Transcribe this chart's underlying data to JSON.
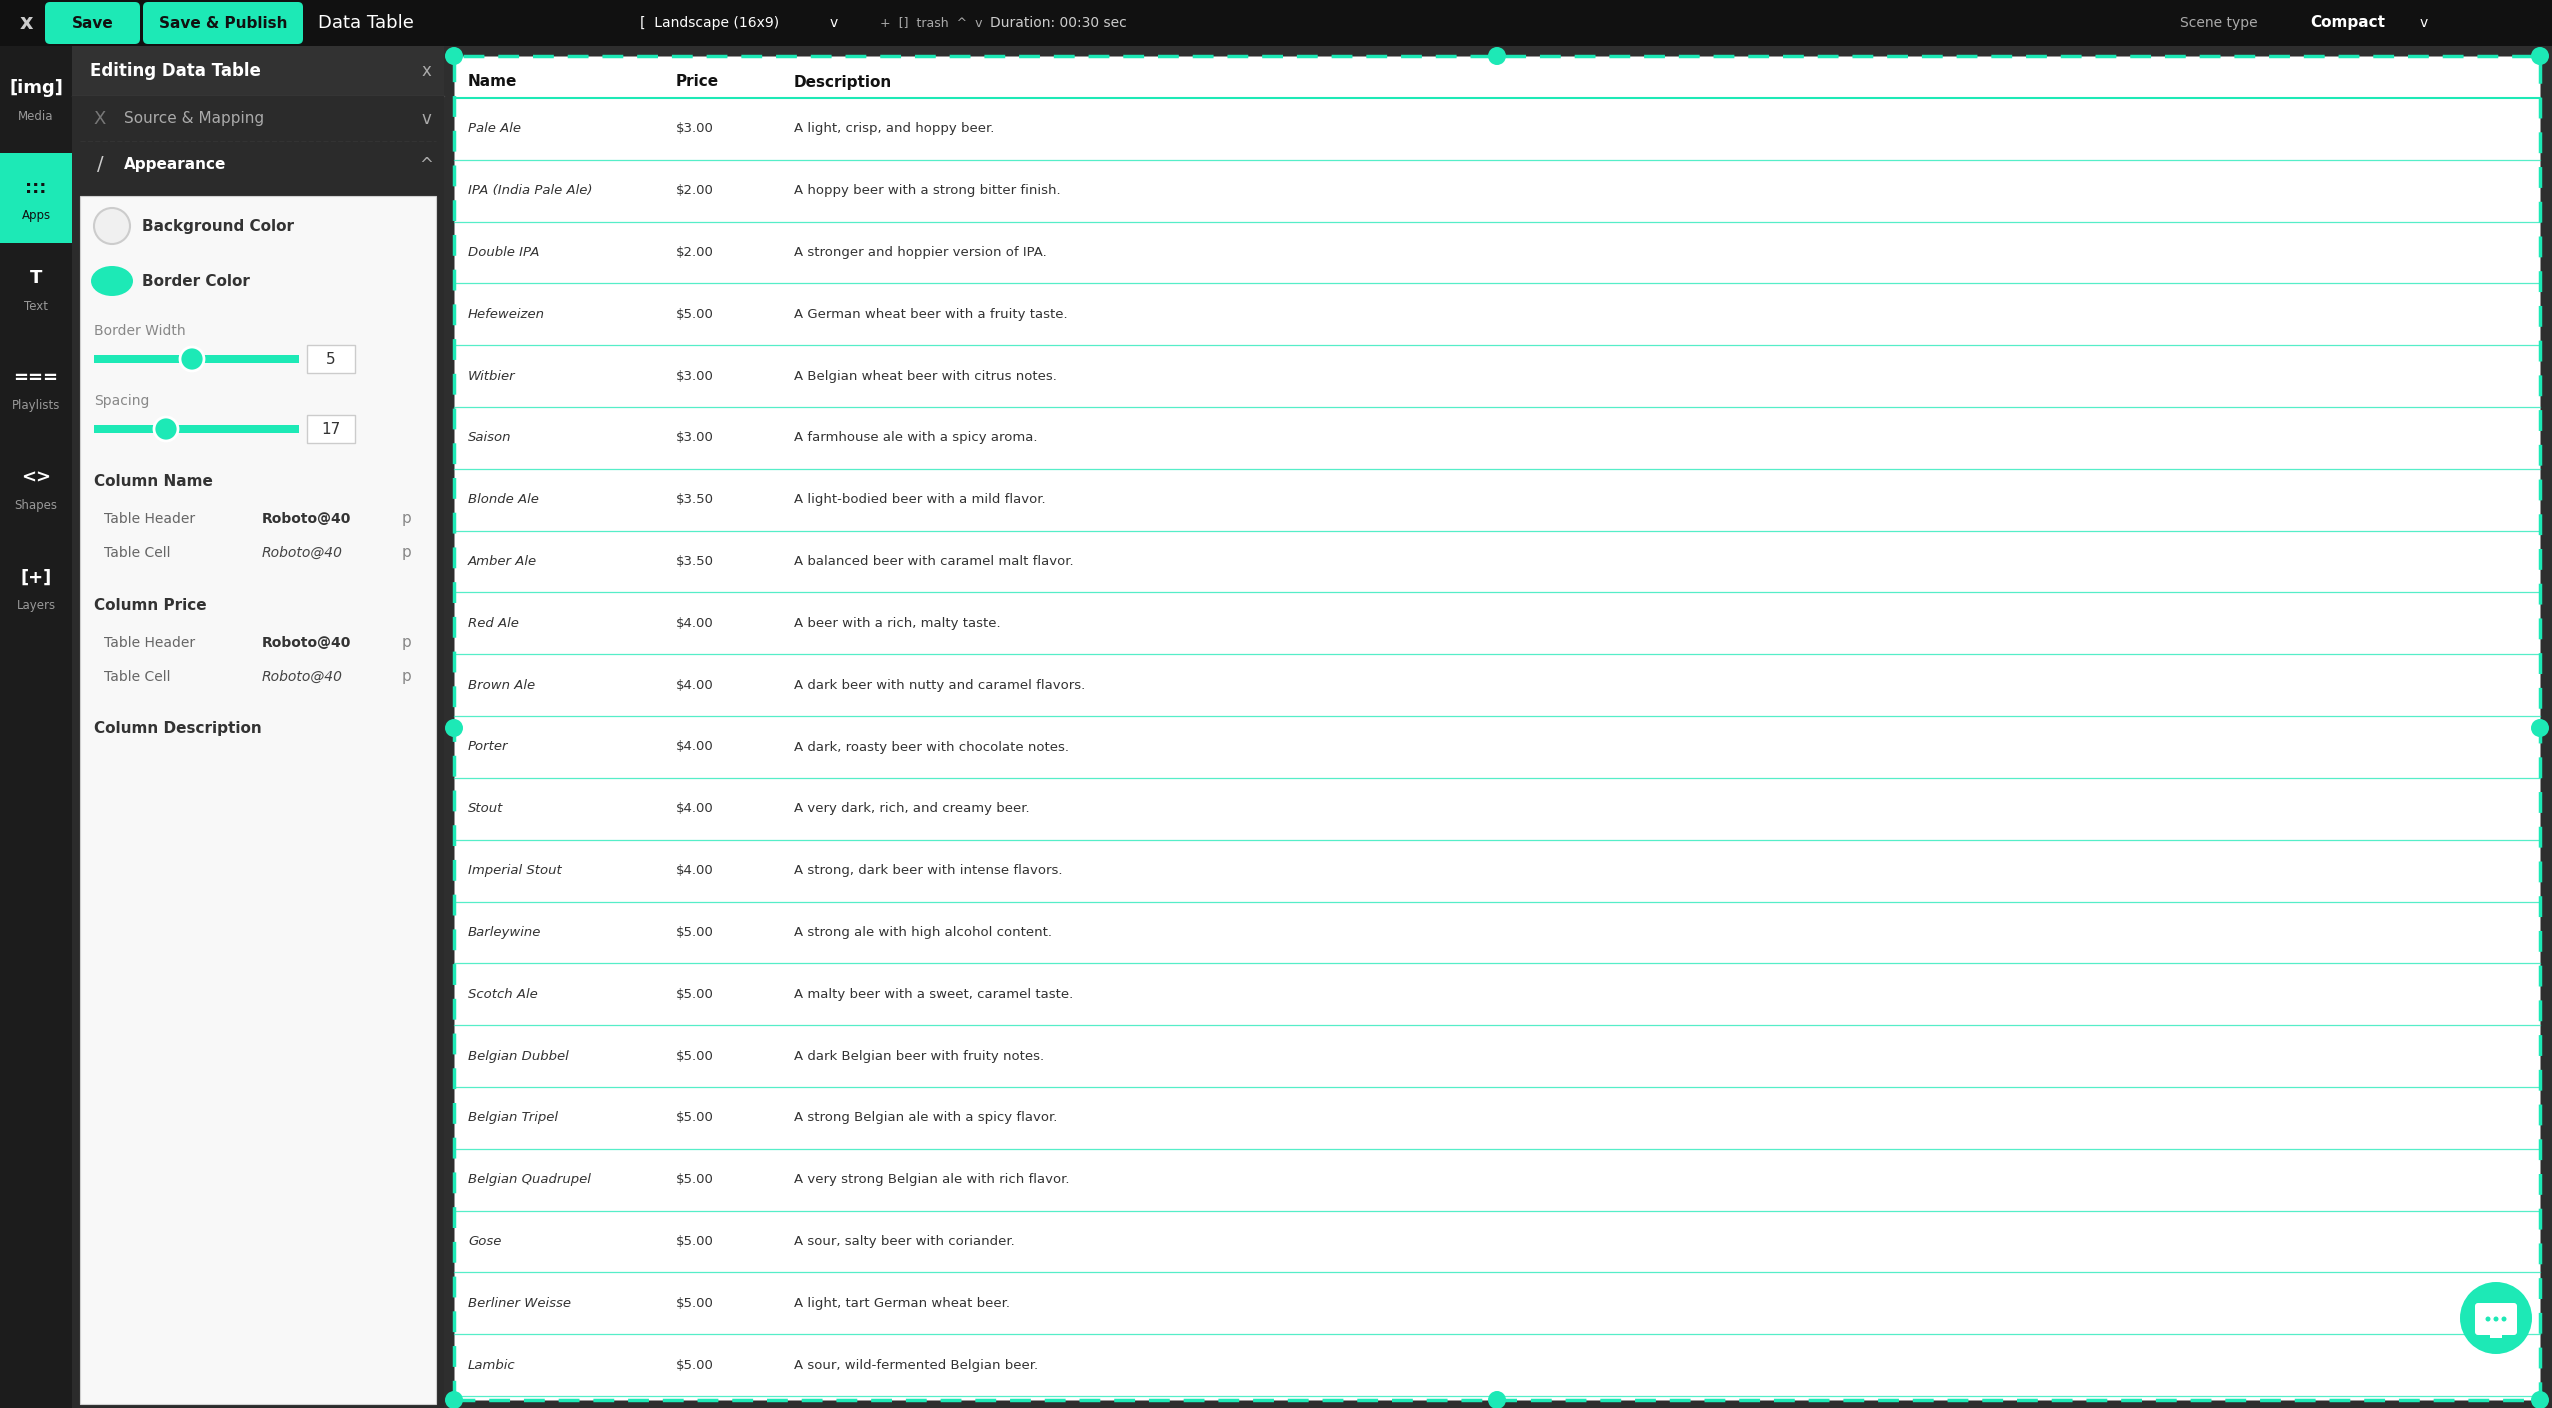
{
  "bg_dark": "#1a1a1a",
  "bg_panel": "#2d2d2d",
  "green": "#1de9b6",
  "text_white": "#ffffff",
  "text_gray": "#aaaaaa",
  "text_dark": "#222222",
  "border_green": "#1de9b6",
  "beer_data": [
    [
      "Pale Ale",
      "$3.00",
      "A light, crisp, and hoppy beer."
    ],
    [
      "IPA (India Pale Ale)",
      "$2.00",
      "A hoppy beer with a strong bitter finish."
    ],
    [
      "Double IPA",
      "$2.00",
      "A stronger and hoppier version of IPA."
    ],
    [
      "Hefeweizen",
      "$5.00",
      "A German wheat beer with a fruity taste."
    ],
    [
      "Witbier",
      "$3.00",
      "A Belgian wheat beer with citrus notes."
    ],
    [
      "Saison",
      "$3.00",
      "A farmhouse ale with a spicy aroma."
    ],
    [
      "Blonde Ale",
      "$3.50",
      "A light-bodied beer with a mild flavor."
    ],
    [
      "Amber Ale",
      "$3.50",
      "A balanced beer with caramel malt flavor."
    ],
    [
      "Red Ale",
      "$4.00",
      "A beer with a rich, malty taste."
    ],
    [
      "Brown Ale",
      "$4.00",
      "A dark beer with nutty and caramel flavors."
    ],
    [
      "Porter",
      "$4.00",
      "A dark, roasty beer with chocolate notes."
    ],
    [
      "Stout",
      "$4.00",
      "A very dark, rich, and creamy beer."
    ],
    [
      "Imperial Stout",
      "$4.00",
      "A strong, dark beer with intense flavors."
    ],
    [
      "Barleywine",
      "$5.00",
      "A strong ale with high alcohol content."
    ],
    [
      "Scotch Ale",
      "$5.00",
      "A malty beer with a sweet, caramel taste."
    ],
    [
      "Belgian Dubbel",
      "$5.00",
      "A dark Belgian beer with fruity notes."
    ],
    [
      "Belgian Tripel",
      "$5.00",
      "A strong Belgian ale with a spicy flavor."
    ],
    [
      "Belgian Quadrupel",
      "$5.00",
      "A very strong Belgian ale with rich flavor."
    ],
    [
      "Gose",
      "$5.00",
      "A sour, salty beer with coriander."
    ],
    [
      "Berliner Weisse",
      "$5.00",
      "A light, tart German wheat beer."
    ],
    [
      "Lambic",
      "$5.00",
      "A sour, wild-fermented Belgian beer."
    ]
  ],
  "col_headers": [
    "Name",
    "Price",
    "Description"
  ],
  "sidebar_items": [
    {
      "label": "Media",
      "active": false
    },
    {
      "label": "Apps",
      "active": true
    },
    {
      "label": "Text",
      "active": false
    },
    {
      "label": "Playlists",
      "active": false
    },
    {
      "label": "Shapes",
      "active": false
    },
    {
      "label": "Layers",
      "active": false
    }
  ]
}
